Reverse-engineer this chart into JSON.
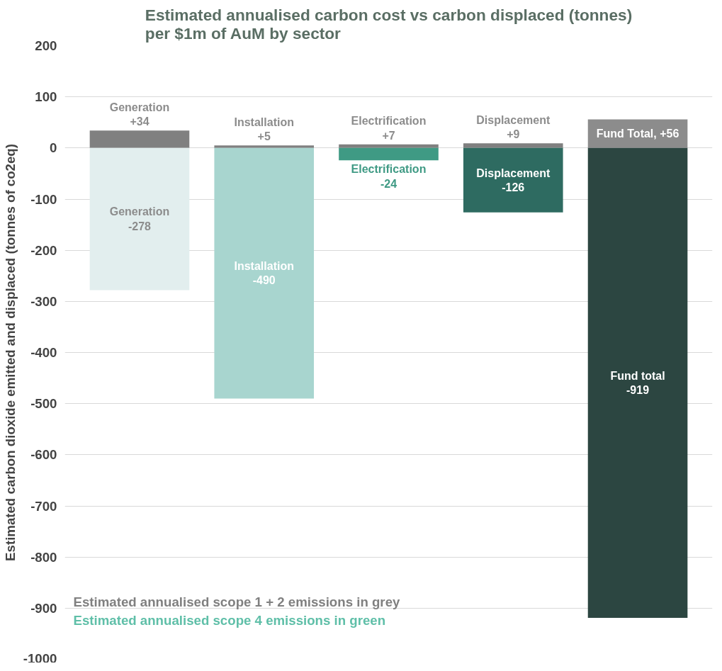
{
  "chart_data": {
    "type": "bar",
    "title": "Estimated annualised carbon cost vs carbon displaced (tonnes)\nper $1m of AuM by sector",
    "ylabel": "Estimated carbon dioxide emitted and displaced (tonnes of co2eq)",
    "categories": [
      null,
      null,
      null,
      null,
      null
    ],
    "stacked": true,
    "series": [
      {
        "name": "Estimated annualised scope 1 + 2 emissions in grey",
        "color": "#808080",
        "colors": [
          "#808080",
          "#808080",
          "#808080",
          "#808080",
          "#8c8c8c"
        ],
        "values": [
          34,
          5,
          7,
          9,
          56
        ],
        "value_labels": [
          "Generation\n+34",
          "Installation\n+5",
          "Electrification\n+7",
          "Displacement\n+9",
          "Fund Total, +56"
        ]
      },
      {
        "name": "Estimated annualised scope 4 emissions in green",
        "color": "#5fbfa8",
        "colors": [
          "#e2eeee",
          "#a8d5cf",
          "#3f9a84",
          "#2e6b61",
          "#2c4641"
        ],
        "values": [
          -278,
          -490,
          -24,
          -126,
          -919
        ],
        "value_labels": [
          "Generation\n-278",
          "Installation\n-490",
          "Electrification\n-24",
          "Displacement\n-126",
          "Fund total\n-919"
        ]
      }
    ],
    "ylim": [
      -1000,
      200
    ],
    "yticks": [
      -1000,
      -900,
      -800,
      -700,
      -600,
      -500,
      -400,
      -300,
      -200,
      -100,
      0,
      100,
      200
    ],
    "grid": "y",
    "legend": "bottom left",
    "tick_labels": "y"
  }
}
